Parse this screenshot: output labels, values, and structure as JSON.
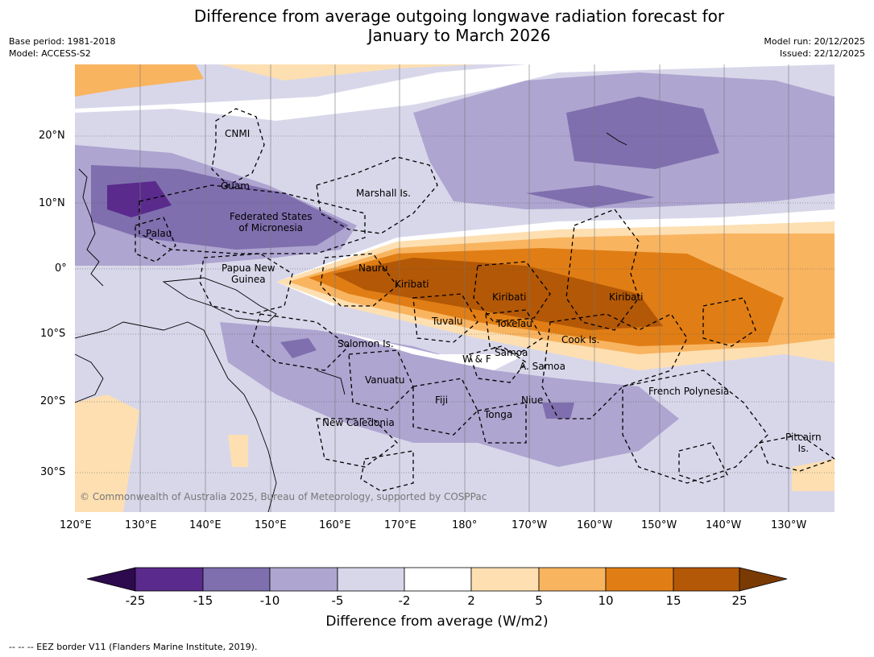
{
  "title_line1": "Difference from average outgoing longwave radiation forecast for",
  "title_line2": "January to March 2026",
  "meta_left": {
    "base_period": "Base period: 1981-2018",
    "model": "Model: ACCESS-S2"
  },
  "meta_right": {
    "model_run": "Model run: 20/12/2025",
    "issued": "Issued: 22/12/2025"
  },
  "lon_labels": [
    "120°E",
    "130°E",
    "140°E",
    "150°E",
    "160°E",
    "170°E",
    "180°",
    "170°W",
    "160°W",
    "150°W",
    "140°W",
    "130°W"
  ],
  "lat_labels": [
    "20°N",
    "10°N",
    "0°",
    "10°S",
    "20°S",
    "30°S"
  ],
  "places": {
    "cnmi": "CNMI",
    "guam": "Guam",
    "marshall": "Marshall Is.",
    "fsm1": "Federated States",
    "fsm2": "of Micronesia",
    "palau": "Palau",
    "png1": "Papua New",
    "png2": "Guinea",
    "nauru": "Nauru",
    "kiribati1": "Kiribati",
    "kiribati2": "Kiribati",
    "kiribati3": "Kiribati",
    "tuvalu": "Tuvalu",
    "tokelau": "Tokelau",
    "cook": "Cook Is.",
    "solomon": "Solomon Is.",
    "wf": "W & F",
    "samoa": "Samoa",
    "asamoa": "A. Samoa",
    "vanuatu": "Vanuatu",
    "fiji": "Fiji",
    "niue": "Niue",
    "tonga": "Tonga",
    "frenchpoly": "French Polynesia",
    "newcal": "New Caledonia",
    "pitcairn1": "Pitcairn",
    "pitcairn2": "Is."
  },
  "copyright": "© Commonwealth of Australia 2025, Bureau of Meteorology, supported by COSPPac",
  "colorbar": {
    "labels": [
      "-25",
      "-15",
      "-10",
      "-5",
      "-2",
      "2",
      "5",
      "10",
      "15",
      "25"
    ],
    "colors": [
      "#2d0a4e",
      "#5a2a8c",
      "#7f6fae",
      "#aea5d0",
      "#d8d7ea",
      "#ffffff",
      "#fddfb1",
      "#f9b460",
      "#e07e15",
      "#b35806",
      "#7a3a04"
    ],
    "title": "Difference from average (W/m2)"
  },
  "footnote": "--  --  -- EEZ border V11 (Flanders Marine Institute, 2019)."
}
